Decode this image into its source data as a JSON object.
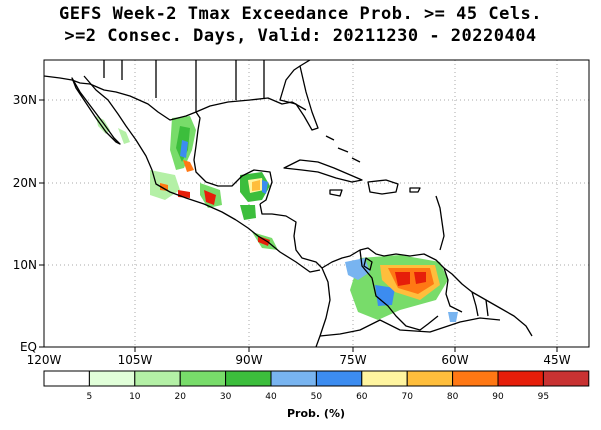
{
  "title": {
    "line1": "GEFS Week-2 Tmax Exceedance Prob. >= 45 Cels.",
    "line2": ">=2 Consec. Days, Valid: 20211230 - 20220404"
  },
  "axes": {
    "lon_labels": [
      "120W",
      "105W",
      "90W",
      "75W",
      "60W",
      "45W"
    ],
    "lat_labels": [
      "30N",
      "20N",
      "10N",
      "EQ"
    ]
  },
  "colorbar": {
    "colors": [
      "#ffffff",
      "#e1ffd9",
      "#b4f0a6",
      "#78dc6a",
      "#3cbe3c",
      "#78b4f0",
      "#3c8cf0",
      "#fff5a0",
      "#ffbe3c",
      "#ff7814",
      "#e61e0a",
      "#c83232"
    ],
    "tick_labels": [
      "5",
      "10",
      "20",
      "30",
      "40",
      "50",
      "60",
      "70",
      "80",
      "90",
      "95"
    ],
    "unit_label": "Prob. (%)"
  },
  "map_colors": {
    "grid": "#aaaaaa",
    "coast": "#000000"
  }
}
